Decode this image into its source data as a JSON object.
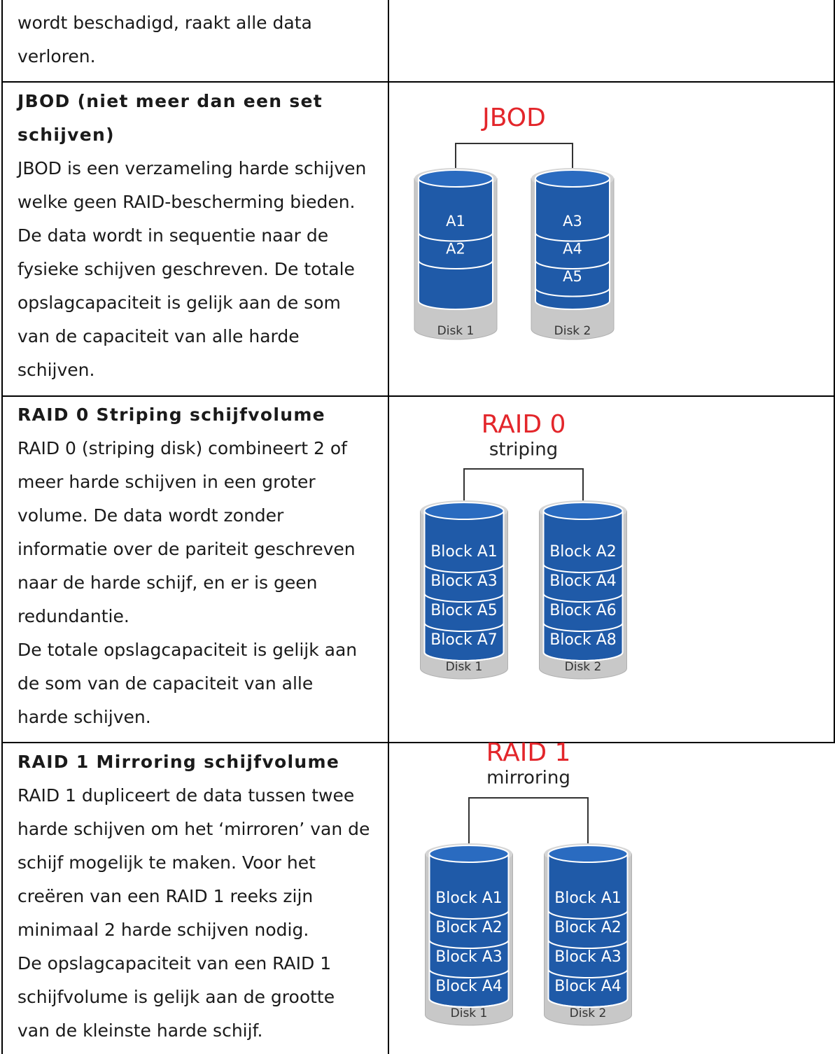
{
  "table": {
    "rows": [
      {
        "body": [
          "wordt beschadigd, raakt alle data",
          "verloren."
        ]
      },
      {
        "title": [
          "JBOD (niet meer dan een set",
          "schijven)"
        ],
        "body": [
          "JBOD is een verzameling harde schijven",
          "welke geen RAID-bescherming bieden.",
          "De data wordt in sequentie naar de",
          "fysieke schijven geschreven. De totale",
          "opslagcapaciteit is gelijk aan de som",
          "van de capaciteit van alle harde",
          "schijven."
        ],
        "diagram": {
          "title": "JBOD",
          "disks": [
            {
              "label": "Disk 1",
              "blocks": [
                "A1",
                "A2"
              ]
            },
            {
              "label": "Disk 2",
              "blocks": [
                "A3",
                "A4",
                "A5"
              ]
            }
          ]
        }
      },
      {
        "title": [
          "RAID 0 Striping schijfvolume"
        ],
        "body": [
          "RAID 0 (striping disk) combineert 2 of",
          "meer harde schijven in een groter",
          "volume. De data wordt zonder",
          "informatie over de pariteit geschreven",
          "naar de harde schijf, en er is geen",
          "redundantie.",
          "De totale opslagcapaciteit is gelijk aan",
          "de som van de capaciteit van alle",
          "harde schijven."
        ],
        "diagram": {
          "title": "RAID 0",
          "subtitle": "striping",
          "disks": [
            {
              "label": "Disk 1",
              "blocks": [
                "Block A1",
                "Block A3",
                "Block A5",
                "Block A7"
              ]
            },
            {
              "label": "Disk 2",
              "blocks": [
                "Block A2",
                "Block A4",
                "Block A6",
                "Block A8"
              ]
            }
          ]
        }
      },
      {
        "title": [
          "RAID 1 Mirroring schijfvolume"
        ],
        "body": [
          "RAID 1 dupliceert de data tussen twee",
          "harde schijven om het ‘mirroren’ van de",
          "schijf mogelijk te maken. Voor het",
          "creëren van een RAID 1 reeks zijn",
          "minimaal 2 harde schijven nodig.",
          "De opslagcapaciteit van een RAID 1",
          "schijfvolume is gelijk aan de grootte",
          "van de kleinste harde schijf."
        ],
        "diagram": {
          "title": "RAID 1",
          "subtitle": "mirroring",
          "disks": [
            {
              "label": "Disk 1",
              "blocks": [
                "Block A1",
                "Block A2",
                "Block A3",
                "Block A4"
              ]
            },
            {
              "label": "Disk 2",
              "blocks": [
                "Block A1",
                "Block A2",
                "Block A3",
                "Block A4"
              ]
            }
          ]
        }
      }
    ]
  }
}
